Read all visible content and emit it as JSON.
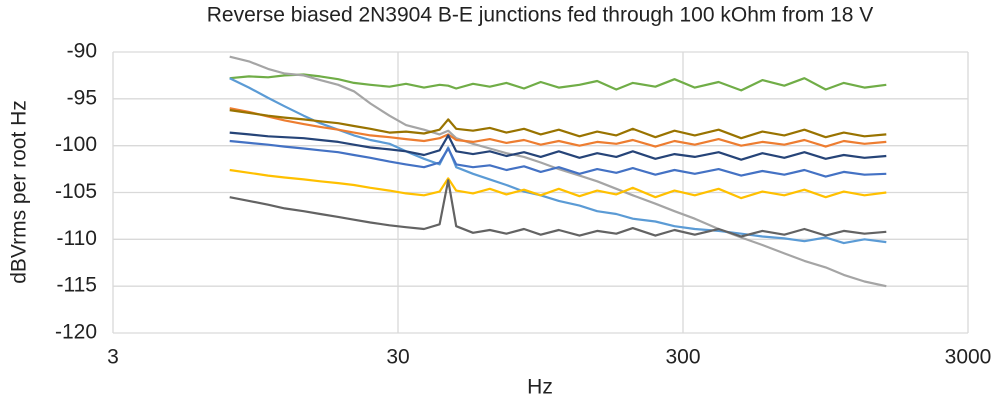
{
  "chart_data": {
    "type": "line",
    "title": "Reverse biased 2N3904 B-E junctions fed through 100 kOhm from 18 V",
    "x_label": "Hz",
    "y_label": "dBVrms per root Hz",
    "xscale": "log",
    "grid": true,
    "xlim": [
      3,
      3000
    ],
    "xticks": [
      3,
      30,
      300,
      3000
    ],
    "ylim": [
      -120,
      -90
    ],
    "yticks": [
      -120,
      -115,
      -110,
      -105,
      -100,
      -95,
      -90
    ],
    "x": [
      7.7,
      9,
      10.5,
      12,
      14,
      16,
      18.5,
      21,
      24,
      28,
      32,
      37,
      42,
      45,
      48,
      55,
      63,
      72,
      83,
      95,
      110,
      130,
      150,
      175,
      200,
      240,
      280,
      330,
      400,
      480,
      570,
      680,
      800,
      950,
      1100,
      1300,
      1550
    ],
    "series": [
      {
        "color": "#70ad47",
        "values": [
          -92.8,
          -92.6,
          -92.7,
          -92.5,
          -92.4,
          -92.6,
          -92.9,
          -93.3,
          -93.5,
          -93.7,
          -93.4,
          -93.8,
          -93.5,
          -93.6,
          -93.9,
          -93.4,
          -93.7,
          -93.3,
          -93.9,
          -93.2,
          -93.8,
          -93.5,
          -93.1,
          -94.0,
          -93.3,
          -93.7,
          -92.9,
          -93.8,
          -93.2,
          -94.1,
          -93.0,
          -93.6,
          -92.8,
          -94.0,
          -93.3,
          -93.8,
          -93.5
        ]
      },
      {
        "color": "#a5a5a5",
        "values": [
          -90.5,
          -91,
          -91.8,
          -92.3,
          -92.5,
          -93,
          -93.5,
          -94.2,
          -95.5,
          -96.8,
          -97.8,
          -98.3,
          -98.8,
          -98.4,
          -99.2,
          -99.8,
          -100.3,
          -100.8,
          -101.2,
          -101.8,
          -102.5,
          -103.2,
          -103.8,
          -104.6,
          -105.3,
          -106.2,
          -107,
          -107.8,
          -108.9,
          -109.8,
          -110.6,
          -111.5,
          -112.3,
          -113,
          -113.8,
          -114.5,
          -115
        ]
      },
      {
        "color": "#5b9bd5",
        "values": [
          -92.8,
          -93.8,
          -94.9,
          -95.8,
          -96.8,
          -97.6,
          -98.3,
          -98.9,
          -99.4,
          -99.8,
          -100.6,
          -101.4,
          -102,
          -100.2,
          -102.3,
          -103,
          -103.6,
          -104.2,
          -104.9,
          -105.3,
          -105.9,
          -106.4,
          -107,
          -107.3,
          -107.8,
          -108.1,
          -108.6,
          -108.9,
          -109.1,
          -109.4,
          -109.7,
          -109.9,
          -110.2,
          -109.8,
          -110.4,
          -110,
          -110.3
        ]
      },
      {
        "color": "#ed7d31",
        "values": [
          -96,
          -96.4,
          -96.9,
          -97.3,
          -97.7,
          -98,
          -98.3,
          -98.6,
          -98.9,
          -99.1,
          -99.3,
          -99.5,
          -99.2,
          -98.8,
          -99.4,
          -99.6,
          -99.3,
          -99.7,
          -99.4,
          -99.9,
          -99.5,
          -100,
          -99.6,
          -99.8,
          -99.4,
          -100.1,
          -99.5,
          -99.9,
          -99.3,
          -100,
          -99.6,
          -99.9,
          -99.4,
          -100.1,
          -99.5,
          -99.8,
          -99.6
        ]
      },
      {
        "color": "#997300",
        "values": [
          -96.2,
          -96.5,
          -96.8,
          -97,
          -97.2,
          -97.4,
          -97.6,
          -97.9,
          -98.2,
          -98.6,
          -98.5,
          -98.7,
          -98.3,
          -97.2,
          -98.2,
          -98.4,
          -98.1,
          -98.6,
          -98.2,
          -98.8,
          -98.3,
          -99,
          -98.5,
          -98.9,
          -98.2,
          -99.1,
          -98.4,
          -98.9,
          -98.3,
          -99.2,
          -98.5,
          -98.9,
          -98.3,
          -99.1,
          -98.6,
          -99,
          -98.8
        ]
      },
      {
        "color": "#264478",
        "values": [
          -98.6,
          -98.8,
          -99,
          -99.1,
          -99.2,
          -99.4,
          -99.6,
          -99.9,
          -100.2,
          -100.4,
          -100.6,
          -101,
          -100.5,
          -98.9,
          -100.6,
          -100.9,
          -100.6,
          -101.1,
          -100.7,
          -101.2,
          -100.6,
          -101.3,
          -100.8,
          -101.2,
          -100.6,
          -101.4,
          -100.9,
          -101.2,
          -100.7,
          -101.5,
          -100.8,
          -101.3,
          -100.7,
          -101.4,
          -101,
          -101.3,
          -101.1
        ]
      },
      {
        "color": "#4472c4",
        "values": [
          -99.5,
          -99.7,
          -99.9,
          -100.1,
          -100.3,
          -100.5,
          -100.7,
          -101,
          -101.3,
          -101.7,
          -102,
          -102.3,
          -101.8,
          -100.3,
          -102,
          -102.3,
          -102.1,
          -102.6,
          -102.2,
          -102.8,
          -102.3,
          -103,
          -102.5,
          -102.9,
          -102.4,
          -103.1,
          -102.6,
          -103,
          -102.5,
          -103.2,
          -102.7,
          -103.1,
          -102.6,
          -103.3,
          -102.8,
          -103.1,
          -103
        ]
      },
      {
        "color": "#ffc000",
        "values": [
          -102.6,
          -102.9,
          -103.2,
          -103.4,
          -103.6,
          -103.8,
          -104,
          -104.2,
          -104.5,
          -104.8,
          -105.1,
          -105.3,
          -104.9,
          -103.5,
          -104.8,
          -105.1,
          -104.6,
          -105.2,
          -104.7,
          -105.3,
          -104.6,
          -105.4,
          -104.8,
          -105.2,
          -104.5,
          -105.5,
          -104.8,
          -105.3,
          -104.6,
          -105.6,
          -104.9,
          -105.3,
          -104.7,
          -105.5,
          -104.9,
          -105.3,
          -105
        ]
      },
      {
        "color": "#636363",
        "values": [
          -105.5,
          -105.9,
          -106.3,
          -106.7,
          -107,
          -107.3,
          -107.6,
          -107.9,
          -108.2,
          -108.5,
          -108.7,
          -108.9,
          -108.4,
          -103.7,
          -108.6,
          -109.3,
          -109,
          -109.4,
          -108.9,
          -109.5,
          -109,
          -109.6,
          -109.1,
          -109.4,
          -108.8,
          -109.6,
          -109,
          -109.5,
          -108.9,
          -109.7,
          -109.1,
          -109.5,
          -108.9,
          -109.6,
          -109.1,
          -109.4,
          -109.2
        ]
      }
    ]
  }
}
